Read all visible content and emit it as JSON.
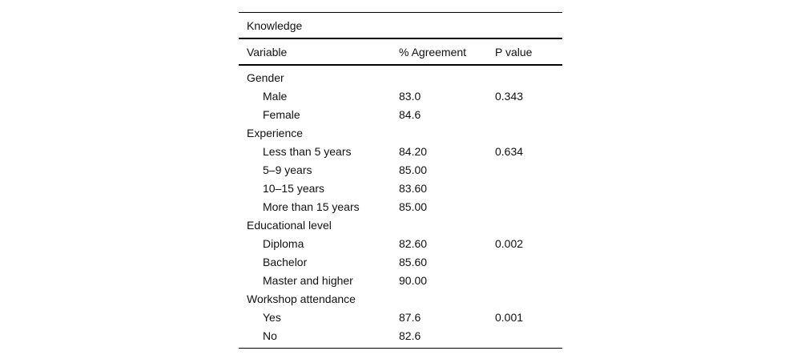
{
  "table": {
    "title": "Knowledge",
    "columns": [
      "Variable",
      "% Agreement",
      "P value"
    ],
    "groups": [
      {
        "label": "Gender",
        "items": [
          {
            "variable": "Male",
            "agreement": "83.0",
            "p_value": "0.343"
          },
          {
            "variable": "Female",
            "agreement": "84.6",
            "p_value": ""
          }
        ]
      },
      {
        "label": "Experience",
        "items": [
          {
            "variable": "Less than 5 years",
            "agreement": "84.20",
            "p_value": "0.634"
          },
          {
            "variable": "5–9 years",
            "agreement": "85.00",
            "p_value": ""
          },
          {
            "variable": "10–15 years",
            "agreement": "83.60",
            "p_value": ""
          },
          {
            "variable": "More than 15 years",
            "agreement": "85.00",
            "p_value": ""
          }
        ]
      },
      {
        "label": "Educational level",
        "items": [
          {
            "variable": "Diploma",
            "agreement": "82.60",
            "p_value": "0.002"
          },
          {
            "variable": "Bachelor",
            "agreement": "85.60",
            "p_value": ""
          },
          {
            "variable": "Master and higher",
            "agreement": "90.00",
            "p_value": ""
          }
        ]
      },
      {
        "label": "Workshop attendance",
        "items": [
          {
            "variable": "Yes",
            "agreement": "87.6",
            "p_value": "0.001"
          },
          {
            "variable": "No",
            "agreement": "82.6",
            "p_value": ""
          }
        ]
      }
    ]
  }
}
